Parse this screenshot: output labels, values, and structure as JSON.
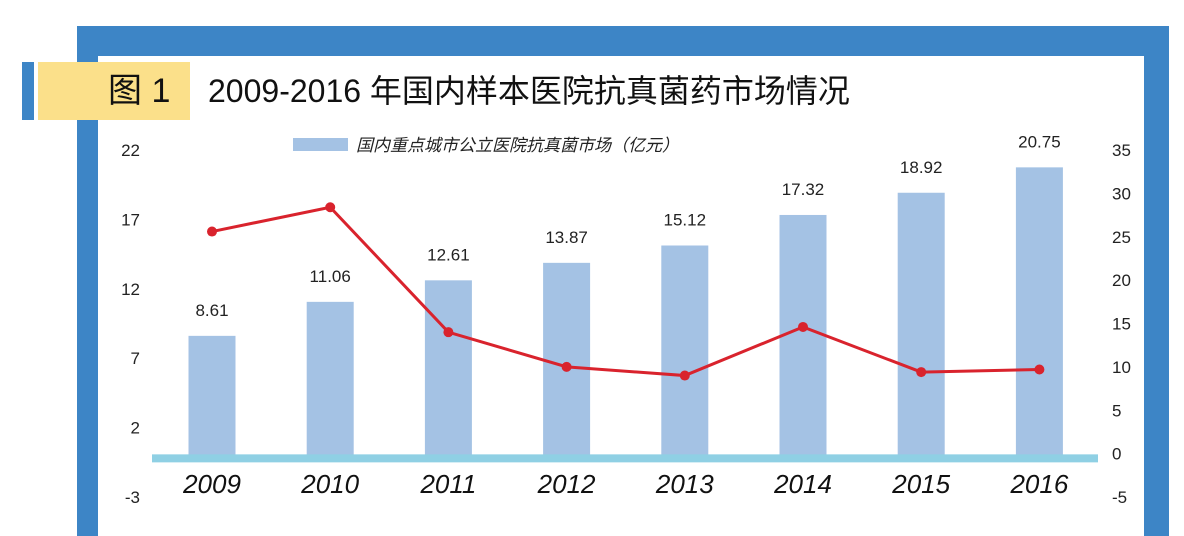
{
  "header": {
    "figure_label": "图 1",
    "title": "2009-2016 年国内样本医院抗真菌药市场情况"
  },
  "colors": {
    "frame": "#3d85c6",
    "badge": "#fbe08a",
    "bar": "#a4c2e4",
    "line": "#d9232d",
    "baseline": "#8fd0e4"
  },
  "chart_data": {
    "type": "bar",
    "categories": [
      "2009",
      "2010",
      "2011",
      "2012",
      "2013",
      "2014",
      "2015",
      "2016"
    ],
    "series": [
      {
        "name": "国内重点城市公立医院抗真菌市场（亿元）",
        "type": "bar",
        "axis": "left",
        "values": [
          8.61,
          11.06,
          12.61,
          13.87,
          15.12,
          17.32,
          18.92,
          20.75
        ]
      },
      {
        "type": "line",
        "axis": "right",
        "values": [
          25.6,
          28.4,
          14.0,
          10.0,
          9.0,
          14.6,
          9.4,
          9.7
        ]
      }
    ],
    "ylim_left": [
      -3,
      22
    ],
    "yticks_left": [
      "22",
      "17",
      "12",
      "7",
      "2",
      "-3"
    ],
    "ylim_right": [
      -5,
      35
    ],
    "yticks_right": [
      "35",
      "30",
      "25",
      "20",
      "15",
      "10",
      "5",
      "0",
      "-5"
    ],
    "legend": {
      "text": "国内重点城市公立医院抗真菌市场（亿元）",
      "position": "top"
    },
    "grid": false
  }
}
